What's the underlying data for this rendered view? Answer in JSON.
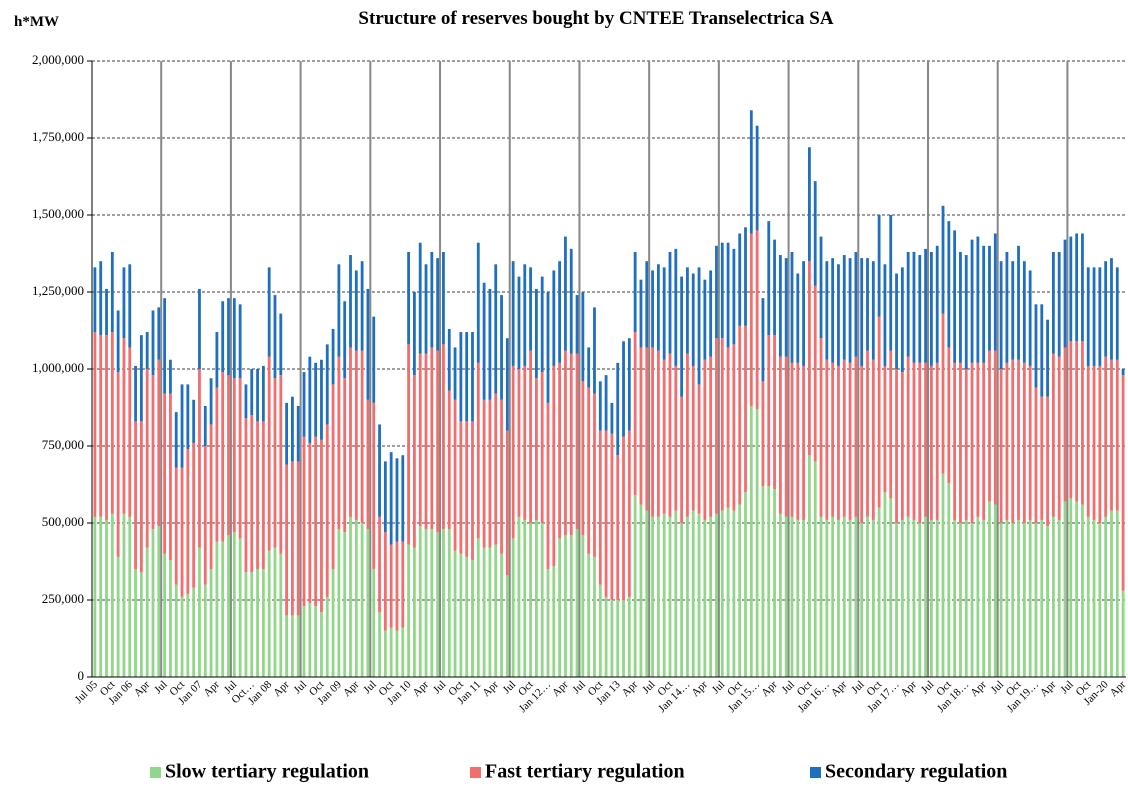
{
  "chart_data": {
    "type": "stacked-bar",
    "title": "Structure of reserves bought by CNTEE Transelectrica SA",
    "y_label": "h*MW",
    "categories": [
      "Jul 05",
      null,
      null,
      "Oct",
      null,
      null,
      "Jan 06",
      null,
      null,
      "Apr",
      null,
      null,
      "Jul",
      null,
      null,
      "Oct",
      null,
      null,
      "Jan 07",
      null,
      null,
      "Apr",
      null,
      null,
      "Jul",
      null,
      null,
      "Oct…",
      null,
      null,
      "Jan 08",
      null,
      null,
      "Apr",
      null,
      null,
      "Jul",
      null,
      null,
      "Oct",
      null,
      null,
      "Jan 09",
      null,
      null,
      "Apr",
      null,
      null,
      "Jul",
      null,
      null,
      "Oct",
      null,
      null,
      "Jan 10",
      null,
      null,
      "Apr",
      null,
      null,
      "Jul",
      null,
      null,
      "Oct",
      null,
      null,
      "Jan 11",
      null,
      null,
      "Apr",
      null,
      null,
      "Jul",
      null,
      null,
      "Oct",
      null,
      null,
      "Jan 12…",
      null,
      null,
      "Apr",
      null,
      null,
      "Jul",
      null,
      null,
      "Oct",
      null,
      null,
      "Jan 13",
      null,
      null,
      "Apr",
      null,
      null,
      "Jul",
      null,
      null,
      "Oct",
      null,
      null,
      "Jan 14…",
      null,
      null,
      "Apr",
      null,
      null,
      "Jul",
      null,
      null,
      "Oct",
      null,
      null,
      "Jan 15…",
      null,
      null,
      "Apr",
      null,
      null,
      "Jul",
      null,
      null,
      "Oct",
      null,
      null,
      "Jan 16…",
      null,
      null,
      "Apr",
      null,
      null,
      "Jul",
      null,
      null,
      "Oct",
      null,
      null,
      "Jan 17…",
      null,
      null,
      "Apr",
      null,
      null,
      "Jul",
      null,
      null,
      "Oct",
      null,
      null,
      "Jan 18…",
      null,
      null,
      "Apr",
      null,
      null,
      "Jul",
      null,
      null,
      "Oct",
      null,
      null,
      "Jan 19…",
      null,
      null,
      "Apr",
      null,
      null,
      "Jul",
      null,
      null,
      "Oct",
      null,
      null,
      "Jan-20",
      null,
      null,
      "Apr"
    ],
    "series": [
      {
        "name": "Slow tertiary regulation",
        "color": "#92d68a",
        "values": [
          520000,
          520000,
          510000,
          530000,
          390000,
          530000,
          520000,
          350000,
          340000,
          420000,
          480000,
          490000,
          400000,
          380000,
          300000,
          260000,
          270000,
          290000,
          420000,
          300000,
          350000,
          440000,
          440000,
          460000,
          470000,
          450000,
          340000,
          340000,
          350000,
          350000,
          410000,
          420000,
          400000,
          200000,
          200000,
          200000,
          230000,
          240000,
          230000,
          210000,
          260000,
          350000,
          480000,
          470000,
          520000,
          510000,
          500000,
          480000,
          350000,
          210000,
          150000,
          160000,
          150000,
          160000,
          430000,
          420000,
          490000,
          480000,
          480000,
          470000,
          480000,
          480000,
          410000,
          400000,
          390000,
          380000,
          450000,
          420000,
          420000,
          430000,
          400000,
          330000,
          450000,
          520000,
          510000,
          500000,
          510000,
          500000,
          350000,
          360000,
          450000,
          460000,
          460000,
          480000,
          460000,
          400000,
          390000,
          300000,
          260000,
          250000,
          250000,
          250000,
          260000,
          590000,
          560000,
          540000,
          520000,
          520000,
          530000,
          520000,
          540000,
          500000,
          520000,
          540000,
          530000,
          510000,
          520000,
          530000,
          540000,
          550000,
          540000,
          560000,
          600000,
          880000,
          870000,
          620000,
          620000,
          610000,
          530000,
          520000,
          520000,
          510000,
          510000,
          720000,
          700000,
          520000,
          510000,
          520000,
          510000,
          520000,
          510000,
          520000,
          500000,
          520000,
          510000,
          550000,
          600000,
          580000,
          500000,
          510000,
          520000,
          510000,
          500000,
          520000,
          510000,
          510000,
          660000,
          630000,
          510000,
          500000,
          510000,
          500000,
          520000,
          510000,
          570000,
          560000,
          500000,
          510000,
          500000,
          510000,
          500000,
          510000,
          500000,
          510000,
          490000,
          520000,
          510000,
          570000,
          580000,
          570000,
          560000,
          520000,
          510000,
          500000,
          520000,
          540000,
          540000,
          280000
        ]
      },
      {
        "name": "Fast tertiary regulation",
        "color": "#f26d6d",
        "values": [
          600000,
          590000,
          600000,
          590000,
          600000,
          570000,
          550000,
          480000,
          490000,
          580000,
          500000,
          540000,
          520000,
          540000,
          380000,
          420000,
          470000,
          470000,
          580000,
          450000,
          470000,
          500000,
          550000,
          520000,
          500000,
          520000,
          500000,
          510000,
          480000,
          480000,
          630000,
          550000,
          580000,
          490000,
          500000,
          500000,
          550000,
          520000,
          550000,
          560000,
          560000,
          600000,
          560000,
          500000,
          550000,
          550000,
          560000,
          420000,
          540000,
          310000,
          320000,
          270000,
          290000,
          280000,
          650000,
          560000,
          560000,
          570000,
          590000,
          590000,
          600000,
          450000,
          490000,
          430000,
          440000,
          450000,
          570000,
          480000,
          480000,
          490000,
          500000,
          470000,
          560000,
          480000,
          500000,
          560000,
          460000,
          490000,
          540000,
          650000,
          570000,
          600000,
          590000,
          570000,
          500000,
          540000,
          530000,
          500000,
          540000,
          540000,
          470000,
          530000,
          540000,
          530000,
          510000,
          530000,
          550000,
          540000,
          500000,
          530000,
          470000,
          410000,
          530000,
          470000,
          420000,
          520000,
          520000,
          570000,
          560000,
          520000,
          540000,
          580000,
          540000,
          560000,
          580000,
          340000,
          490000,
          500000,
          510000,
          520000,
          500000,
          510000,
          500000,
          630000,
          570000,
          580000,
          520000,
          500000,
          500000,
          510000,
          510000,
          520000,
          510000,
          540000,
          520000,
          620000,
          410000,
          480000,
          500000,
          480000,
          520000,
          510000,
          520000,
          500000,
          500000,
          510000,
          520000,
          440000,
          510000,
          520000,
          490000,
          520000,
          500000,
          510000,
          490000,
          500000,
          500000,
          510000,
          530000,
          520000,
          520000,
          500000,
          440000,
          400000,
          420000,
          530000,
          530000,
          500000,
          510000,
          520000,
          530000,
          490000,
          500000,
          510000,
          520000,
          490000,
          490000,
          700000
        ]
      },
      {
        "name": "Secondary regulation",
        "color": "#1f6fc0",
        "values": [
          210000,
          240000,
          150000,
          260000,
          200000,
          230000,
          270000,
          180000,
          280000,
          120000,
          210000,
          170000,
          310000,
          110000,
          180000,
          270000,
          210000,
          140000,
          260000,
          130000,
          150000,
          180000,
          230000,
          250000,
          260000,
          240000,
          110000,
          150000,
          170000,
          180000,
          290000,
          270000,
          200000,
          200000,
          210000,
          180000,
          210000,
          280000,
          240000,
          260000,
          260000,
          180000,
          300000,
          250000,
          300000,
          260000,
          290000,
          360000,
          280000,
          300000,
          230000,
          300000,
          270000,
          280000,
          300000,
          270000,
          360000,
          290000,
          310000,
          300000,
          300000,
          200000,
          170000,
          290000,
          290000,
          290000,
          390000,
          380000,
          360000,
          420000,
          340000,
          300000,
          340000,
          300000,
          330000,
          270000,
          290000,
          310000,
          360000,
          310000,
          330000,
          370000,
          340000,
          190000,
          290000,
          130000,
          280000,
          160000,
          180000,
          100000,
          300000,
          310000,
          300000,
          260000,
          220000,
          280000,
          250000,
          280000,
          300000,
          330000,
          380000,
          390000,
          280000,
          300000,
          380000,
          260000,
          280000,
          300000,
          310000,
          340000,
          310000,
          300000,
          320000,
          400000,
          340000,
          270000,
          370000,
          310000,
          330000,
          320000,
          360000,
          290000,
          340000,
          370000,
          340000,
          330000,
          320000,
          340000,
          330000,
          340000,
          340000,
          340000,
          350000,
          300000,
          320000,
          330000,
          330000,
          440000,
          310000,
          340000,
          340000,
          360000,
          350000,
          370000,
          370000,
          380000,
          350000,
          410000,
          430000,
          360000,
          370000,
          400000,
          410000,
          380000,
          340000,
          380000,
          350000,
          360000,
          320000,
          370000,
          330000,
          310000,
          270000,
          300000,
          250000,
          330000,
          340000,
          350000,
          340000,
          350000,
          350000,
          320000,
          320000,
          320000,
          310000,
          330000,
          300000,
          20000
        ]
      }
    ],
    "ylim": [
      0,
      2000000
    ],
    "yticks": [
      0,
      {
        "value": 250000,
        "label": "250,000"
      },
      {
        "value": 500000,
        "label": "500,000"
      },
      {
        "value": 750000,
        "label": "750,000"
      },
      {
        "value": 1000000,
        "label": "1,000,000"
      },
      {
        "value": 1250000,
        "label": "1,250,000"
      },
      {
        "value": 1500000,
        "label": "1,500,000"
      },
      {
        "value": 1750000,
        "label": "1,750,000"
      },
      {
        "value": 2000000,
        "label": "2,000,000"
      }
    ],
    "grid": true
  }
}
